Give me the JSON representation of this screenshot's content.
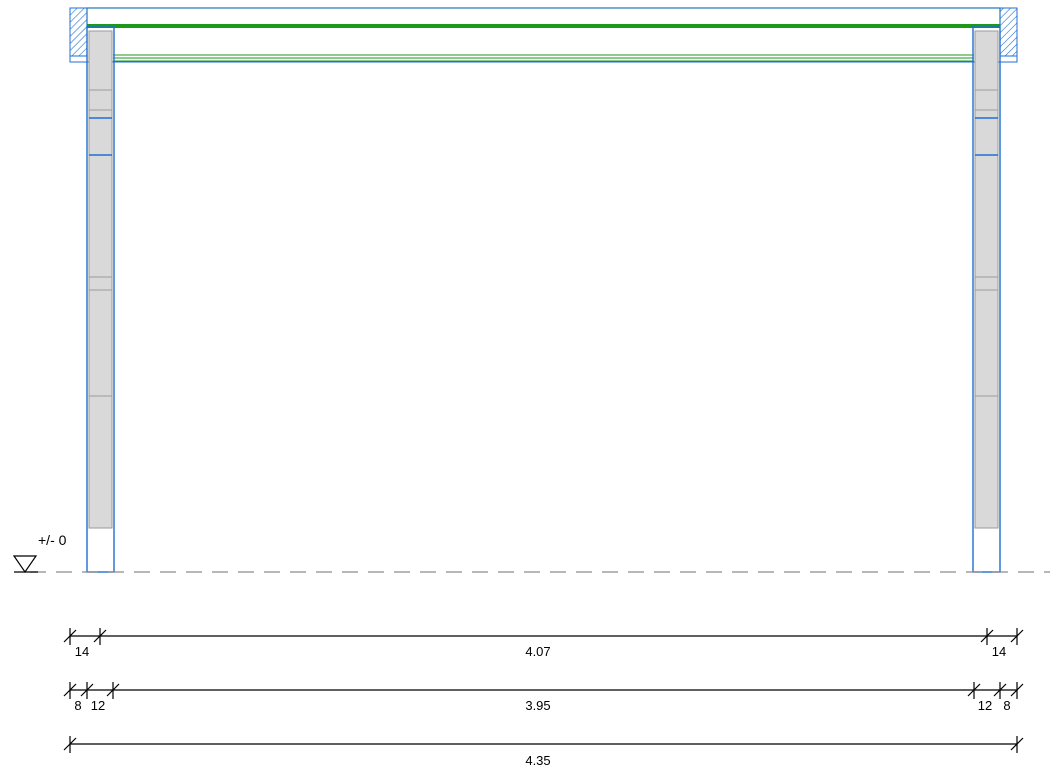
{
  "level": {
    "label": "+/- 0"
  },
  "dimensions": {
    "row1": [
      "14",
      "4.07",
      "14"
    ],
    "row2": [
      "8",
      "12",
      "3.95",
      "12",
      "8"
    ],
    "row3": [
      "4.35"
    ]
  },
  "colors": {
    "wall_outline": "#1f6fd6",
    "wall_fill": "#d9d9d9",
    "slab": "#1a9a1a",
    "hatch": "#1f6fd6",
    "ground_line": "#8c8c8c",
    "dimension": "#000000"
  }
}
